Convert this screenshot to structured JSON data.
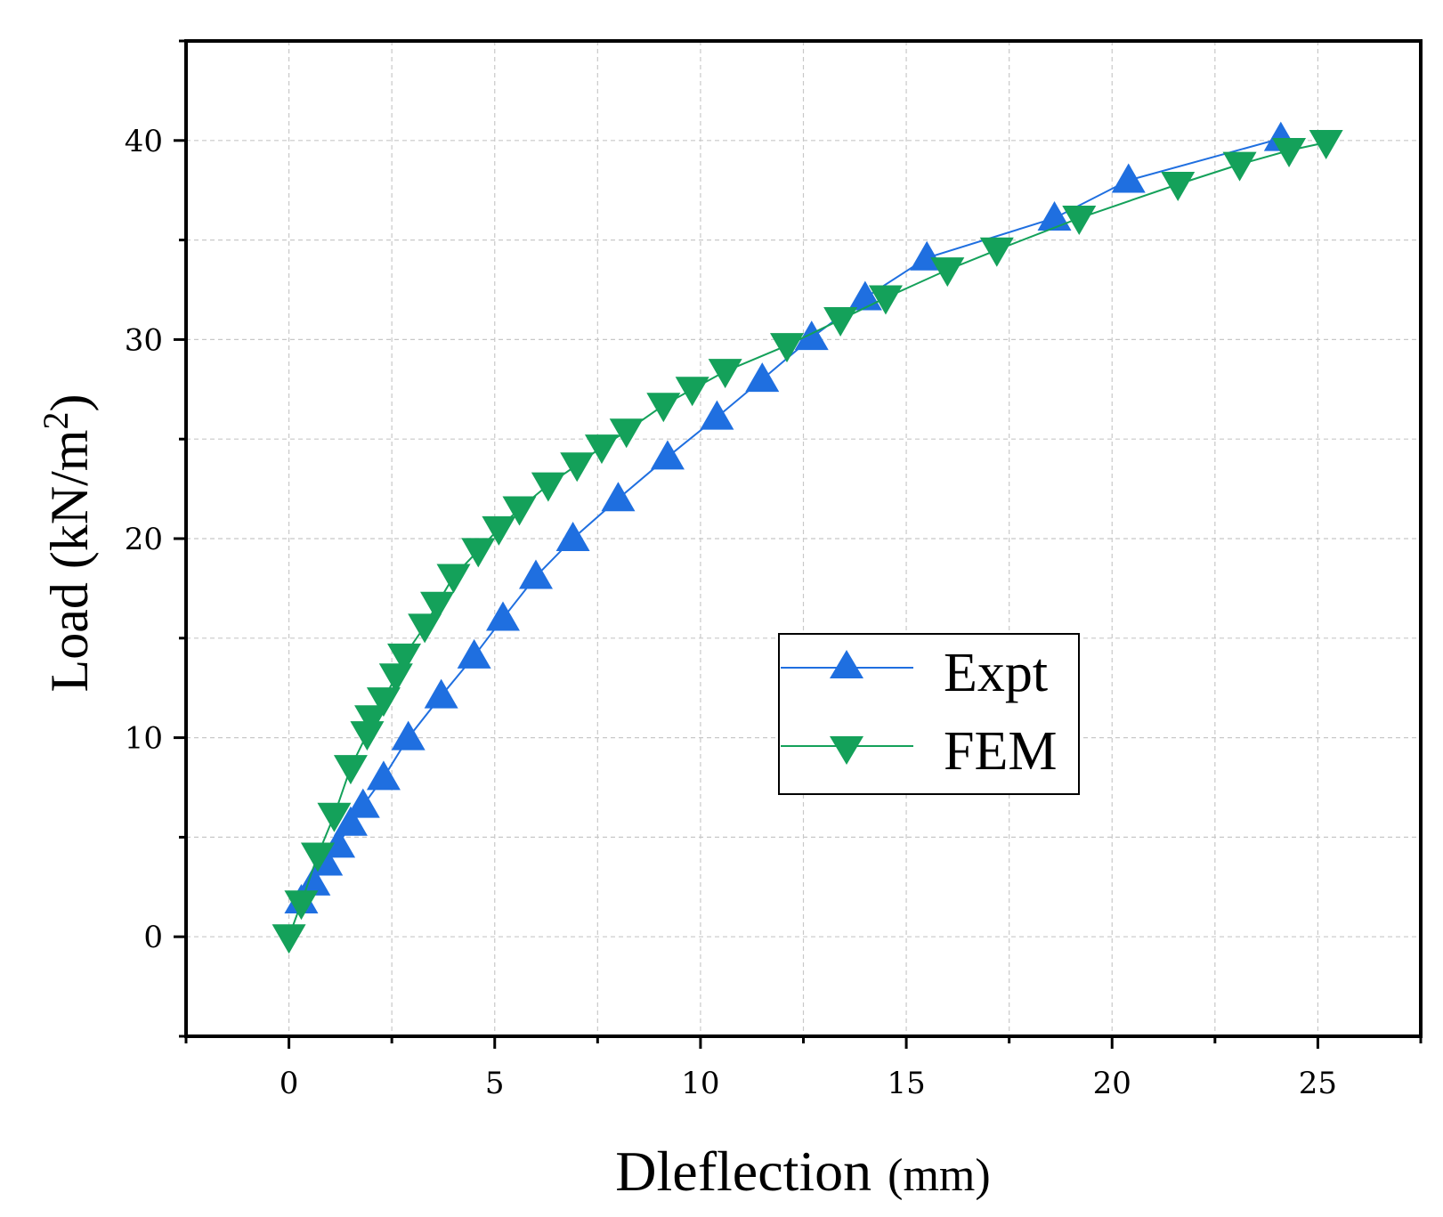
{
  "chart_data": {
    "type": "line",
    "title": "",
    "xlabel": "Dleflection",
    "xlabel_unit": "(mm)",
    "ylabel": "Load (kN/m",
    "ylabel_sup": "2",
    "ylabel_end": ")",
    "xlim": [
      -2.5,
      27.5
    ],
    "ylim": [
      -5,
      45
    ],
    "xticks": [
      0,
      5,
      10,
      15,
      20,
      25
    ],
    "xtick_labels": [
      "0",
      "5",
      "10",
      "15",
      "20",
      "25"
    ],
    "yticks": [
      0,
      10,
      20,
      30,
      40
    ],
    "ytick_labels": [
      "0",
      "10",
      "20",
      "30",
      "40"
    ],
    "grid": true,
    "legend_position": "center-right",
    "series": [
      {
        "name": "Expt",
        "color": "#1f6fe0",
        "marker": "triangle-up",
        "x": [
          0.3,
          0.6,
          0.9,
          1.2,
          1.5,
          1.8,
          2.3,
          2.9,
          3.7,
          4.5,
          5.2,
          6.0,
          6.9,
          8.0,
          9.2,
          10.4,
          11.5,
          12.7,
          14.0,
          15.5,
          18.6,
          20.4,
          24.1
        ],
        "y": [
          1.8,
          2.7,
          3.7,
          4.6,
          5.7,
          6.6,
          8.0,
          10.0,
          12.1,
          14.1,
          16.0,
          18.1,
          20.0,
          22.0,
          24.1,
          26.1,
          28.0,
          30.1,
          32.1,
          34.1,
          36.1,
          38.0,
          40.1
        ]
      },
      {
        "name": "FEM",
        "color": "#14a15a",
        "marker": "triangle-down",
        "x": [
          0.0,
          0.3,
          0.7,
          1.1,
          1.5,
          1.9,
          2.0,
          2.3,
          2.6,
          2.8,
          3.3,
          3.6,
          4.0,
          4.6,
          5.1,
          5.6,
          6.3,
          7.0,
          7.6,
          8.2,
          9.1,
          9.8,
          10.6,
          12.1,
          13.4,
          14.5,
          16.0,
          17.2,
          19.2,
          21.6,
          23.1,
          24.3,
          25.2
        ],
        "y": [
          0.0,
          1.7,
          4.1,
          6.1,
          8.5,
          10.2,
          11.0,
          11.9,
          13.1,
          14.1,
          15.6,
          16.7,
          18.1,
          19.4,
          20.5,
          21.5,
          22.7,
          23.7,
          24.6,
          25.4,
          26.7,
          27.5,
          28.4,
          29.7,
          31.0,
          32.1,
          33.5,
          34.5,
          36.1,
          37.8,
          38.8,
          39.5,
          39.9
        ]
      }
    ]
  }
}
